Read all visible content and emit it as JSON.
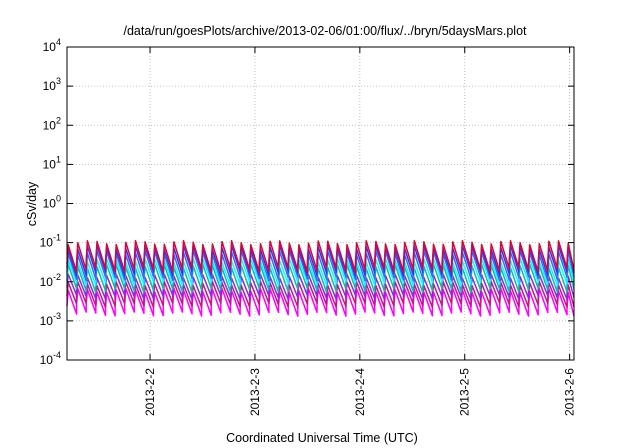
{
  "chart_data": {
    "type": "line",
    "title": "/data/run/goesPlots/archive/2013-02-06/01:00/flux/../bryn/5daysMars.plot",
    "xlabel": "Coordinated Universal Time (UTC)",
    "ylabel": "cSv/day",
    "x_start": "2013-02-01T05:00",
    "x_end": "2013-02-06T01:00",
    "x_ticks": [
      {
        "value": "2013-02-02T00:00",
        "label": "2013-2-2"
      },
      {
        "value": "2013-02-03T00:00",
        "label": "2013-2-3"
      },
      {
        "value": "2013-02-04T00:00",
        "label": "2013-2-4"
      },
      {
        "value": "2013-02-05T00:00",
        "label": "2013-2-5"
      },
      {
        "value": "2013-02-06T00:00",
        "label": "2013-2-6"
      }
    ],
    "y_scale": "log",
    "ylim": [
      0.0001,
      10000
    ],
    "y_ticks": [
      {
        "value": 0.0001,
        "base": "10",
        "exp": "-4"
      },
      {
        "value": 0.001,
        "base": "10",
        "exp": "-3"
      },
      {
        "value": 0.01,
        "base": "10",
        "exp": "-2"
      },
      {
        "value": 0.1,
        "base": "10",
        "exp": "-1"
      },
      {
        "value": 1,
        "base": "10",
        "exp": "0"
      },
      {
        "value": 10,
        "base": "10",
        "exp": "1"
      },
      {
        "value": 100,
        "base": "10",
        "exp": "2"
      },
      {
        "value": 1000,
        "base": "10",
        "exp": "3"
      },
      {
        "value": 10000,
        "base": "10",
        "exp": "4"
      }
    ],
    "grid": true,
    "period_hours": 2.2,
    "series": [
      {
        "color": "#ff00ff",
        "peak": 0.006,
        "trough": 0.0015
      },
      {
        "color": "#c71585",
        "peak": 0.009,
        "trough": 0.0025
      },
      {
        "color": "#8a2be2",
        "peak": 0.014,
        "trough": 0.004
      },
      {
        "color": "#20b2aa",
        "peak": 0.025,
        "trough": 0.006
      },
      {
        "color": "#00ffff",
        "peak": 0.035,
        "trough": 0.009
      },
      {
        "color": "#4169e1",
        "peak": 0.055,
        "trough": 0.012
      },
      {
        "color": "#1e3cff",
        "peak": 0.075,
        "trough": 0.016
      },
      {
        "color": "#e0003a",
        "peak": 0.1,
        "trough": 0.02
      }
    ]
  }
}
